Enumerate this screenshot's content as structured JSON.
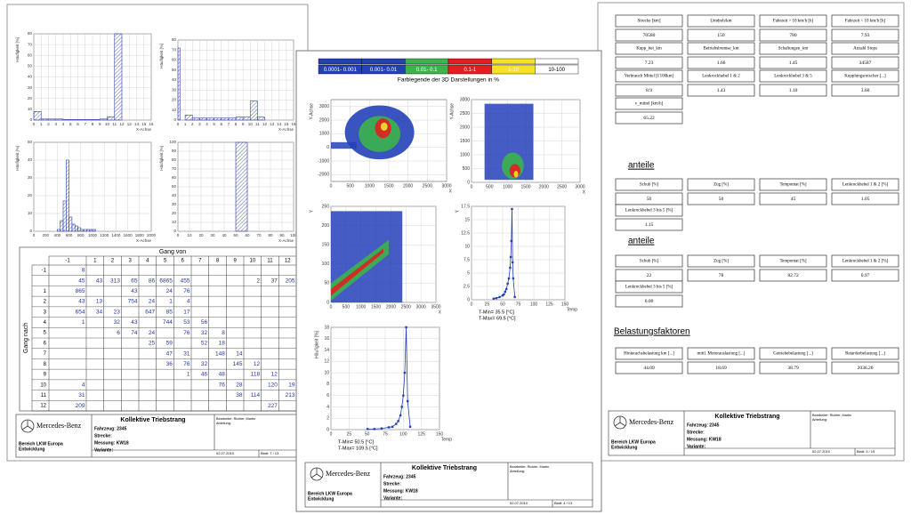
{
  "left_page": {
    "charts": [
      {
        "ylabel": "Häufigkeit [%]",
        "xlabel": "X-Achse",
        "xlim": [
          0,
          16
        ],
        "ylim": [
          0,
          80
        ],
        "xticks": [
          0,
          1,
          2,
          3,
          4,
          5,
          6,
          7,
          8,
          9,
          10,
          11,
          12,
          13,
          14,
          15,
          16
        ],
        "yticks": [
          0,
          10,
          20,
          30,
          40,
          50,
          60,
          70,
          80
        ],
        "bins": [
          0,
          1,
          2,
          3,
          4,
          5,
          6,
          7,
          8,
          9,
          10,
          11,
          12,
          13,
          14,
          15,
          16
        ],
        "values": [
          8,
          1,
          1,
          1,
          0.5,
          0.5,
          0.5,
          0.5,
          0.5,
          1,
          3,
          80,
          0,
          0,
          0,
          0
        ],
        "color": "#3344aa"
      },
      {
        "ylabel": "Häufigkeit [%]",
        "xlabel": "X-Achse",
        "xlim": [
          0,
          16
        ],
        "ylim": [
          0,
          80
        ],
        "xticks": [
          0,
          1,
          2,
          3,
          4,
          5,
          6,
          7,
          8,
          9,
          10,
          11,
          12,
          13,
          14,
          15,
          16
        ],
        "yticks": [
          0,
          10,
          20,
          30,
          40,
          50,
          60,
          70,
          80
        ],
        "bins": [
          0,
          0.3,
          1,
          2,
          3,
          4,
          5,
          6,
          7,
          8,
          9,
          10,
          11,
          12,
          13
        ],
        "values": [
          72,
          0,
          5,
          2,
          2,
          2,
          2,
          2,
          2,
          3,
          3,
          19,
          3,
          0
        ],
        "color": "#3344aa"
      },
      {
        "ylabel": "Häufigkeit [%]",
        "xlabel": "X-Achse",
        "xlim": [
          0,
          2000
        ],
        "ylim": [
          0,
          50
        ],
        "xticks": [
          0,
          200,
          400,
          600,
          800,
          1000,
          1200,
          1400,
          1600,
          1800,
          2000
        ],
        "yticks": [
          0,
          10,
          20,
          30,
          40,
          50
        ],
        "bins": [
          0,
          50,
          100,
          150,
          200,
          250,
          300,
          350,
          400,
          450,
          500,
          550,
          600,
          650,
          700,
          750,
          800,
          850,
          900,
          950,
          1000,
          1050
        ],
        "values": [
          0,
          0,
          0,
          0,
          0,
          0,
          0,
          0,
          1,
          6,
          17,
          40,
          8,
          4,
          3,
          2,
          1,
          1,
          1,
          1,
          1
        ],
        "color": "#3344aa"
      },
      {
        "ylabel": "Häufigkeit [%]",
        "xlabel": "X-Achse",
        "xlim": [
          0,
          100
        ],
        "ylim": [
          0,
          100
        ],
        "xticks": [
          0,
          10,
          20,
          30,
          40,
          50,
          60,
          70,
          80,
          90,
          100
        ],
        "yticks": [
          0,
          10,
          20,
          30,
          40,
          50,
          60,
          70,
          80,
          90,
          100
        ],
        "bins": [
          0,
          10,
          20,
          30,
          40,
          50,
          60,
          70,
          80,
          90,
          100
        ],
        "values": [
          0,
          0,
          0,
          0,
          0,
          100,
          0,
          0,
          0,
          0
        ],
        "color": "#3344aa"
      }
    ],
    "table": {
      "title": "Gang von",
      "row_title": "Gang nach",
      "columns": [
        -1,
        1,
        2,
        3,
        4,
        5,
        6,
        7,
        8,
        9,
        10,
        11,
        12
      ],
      "rows": [
        {
          "label": -1,
          "cells": [
            8,
            null,
            null,
            null,
            null,
            null,
            null,
            null,
            null,
            null,
            null,
            null,
            null
          ]
        },
        {
          "label": null,
          "cells": [
            45,
            43,
            313,
            65,
            86,
            6865,
            455,
            null,
            null,
            null,
            2,
            37,
            205
          ]
        },
        {
          "label": 1,
          "cells": [
            865,
            null,
            null,
            43,
            null,
            24,
            76,
            null,
            null,
            null,
            null,
            null,
            null
          ]
        },
        {
          "label": 2,
          "cells": [
            43,
            13,
            null,
            754,
            24,
            1,
            4,
            null,
            null,
            null,
            null,
            null,
            null
          ]
        },
        {
          "label": 3,
          "cells": [
            654,
            34,
            23,
            null,
            647,
            85,
            17,
            null,
            null,
            null,
            null,
            null,
            null
          ]
        },
        {
          "label": 4,
          "cells": [
            1,
            null,
            32,
            43,
            null,
            744,
            53,
            56,
            null,
            null,
            null,
            null,
            null
          ]
        },
        {
          "label": 5,
          "cells": [
            null,
            null,
            6,
            74,
            24,
            null,
            76,
            32,
            8,
            null,
            null,
            null,
            null
          ]
        },
        {
          "label": 6,
          "cells": [
            null,
            null,
            null,
            null,
            25,
            59,
            null,
            52,
            18,
            null,
            null,
            null,
            null
          ]
        },
        {
          "label": 7,
          "cells": [
            null,
            null,
            null,
            null,
            null,
            47,
            31,
            null,
            148,
            14,
            null,
            null,
            null
          ]
        },
        {
          "label": 8,
          "cells": [
            null,
            null,
            null,
            null,
            null,
            36,
            76,
            32,
            null,
            145,
            12,
            null,
            null
          ]
        },
        {
          "label": 9,
          "cells": [
            null,
            null,
            null,
            null,
            null,
            null,
            1,
            46,
            48,
            null,
            118,
            12,
            null
          ]
        },
        {
          "label": 10,
          "cells": [
            4,
            null,
            null,
            null,
            null,
            null,
            null,
            null,
            76,
            28,
            null,
            120,
            19
          ]
        },
        {
          "label": 11,
          "cells": [
            31,
            null,
            null,
            null,
            null,
            null,
            null,
            null,
            null,
            38,
            114,
            null,
            213
          ]
        },
        {
          "label": 12,
          "cells": [
            209,
            null,
            null,
            null,
            null,
            null,
            null,
            null,
            null,
            null,
            null,
            227,
            null
          ]
        }
      ]
    },
    "footer": {
      "brand": "Mercedes-Benz",
      "title": "Kollektive Triebstrang",
      "vehicle": "Fahrzeug: 2345",
      "route": "Strecke:",
      "measurement": "Messung: KW18",
      "variant": "Variante:",
      "dept1": "Bereich LKW Europa",
      "dept2": "Entwicklung",
      "editor": "Bearbeiter: Richter, Martin",
      "section": "Abteilung:",
      "date": "02.07.2010",
      "sheet": "Blatt: 7 / 13"
    }
  },
  "right_page": {
    "kpis": [
      {
        "label": "Strecke [km]",
        "value": "70580"
      },
      {
        "label": "Umdreh/km",
        "value": "150"
      },
      {
        "label": "Fahrzeit > 10 km/h [h]",
        "value": "780"
      },
      {
        "label": "Fahrzeit < 10 km/h [h]",
        "value": "7.93"
      },
      {
        "label": "Kupp_bet_km",
        "value": "7.23"
      },
      {
        "label": "Betriebsbremse_km",
        "value": "1.66"
      },
      {
        "label": "Schaltungen_km",
        "value": "1.45"
      },
      {
        "label": "Anzahl Stops",
        "value": "34587"
      },
      {
        "label": "Verbrauch Mittel [l/100km]",
        "value": "8.9"
      },
      {
        "label": "Lenkrockhebel 1 & 2",
        "value": "1.43"
      },
      {
        "label": "Lenkrockhebel 3 & 5",
        "value": "1.10"
      },
      {
        "label": "Kupplungsrutscher [...]",
        "value": "3.60"
      },
      {
        "label": "v_mittel [km/h]",
        "value": "65.22"
      }
    ],
    "sections": [
      {
        "title": "anteile",
        "items": [
          {
            "label": "Schub [%]",
            "value": "50"
          },
          {
            "label": "Zug [%]",
            "value": "50"
          },
          {
            "label": "Tempomat [%]",
            "value": "45"
          },
          {
            "label": "Lenkrockhebel 1 & 2 [%]",
            "value": "1.05"
          },
          {
            "label": "Lenkrockhebel 3 bis 5 [%]",
            "value": "1.15"
          }
        ]
      },
      {
        "title": "anteile",
        "items": [
          {
            "label": "Schub [%]",
            "value": "22"
          },
          {
            "label": "Zug [%]",
            "value": "78"
          },
          {
            "label": "Tempomat [%]",
            "value": "82.72"
          },
          {
            "label": "Lenkrockhebel 1 & 2 [%]",
            "value": "0.97"
          },
          {
            "label": "Lenkrockhebel 3 bis 5 [%]",
            "value": "0.00"
          }
        ]
      },
      {
        "title": "Belastungsfaktoren",
        "items": [
          {
            "label": "Hinterachsbelastung km [...]",
            "value": "44.09"
          },
          {
            "label": "mittl. Motorauslastung [...]",
            "value": "18.69"
          },
          {
            "label": "Getriebebelastung [...]",
            "value": "38.79"
          },
          {
            "label": "Retarderbelastung [...]",
            "value": "2036.26"
          }
        ]
      }
    ],
    "footer": {
      "brand": "Mercedes-Benz",
      "title": "Kollektive Triebstrang",
      "vehicle": "Fahrzeug: 2345",
      "route": "Strecke:",
      "measurement": "Messung: KW18",
      "variant": "Variante:",
      "dept1": "Bereich LKW Europa",
      "dept2": "Entwicklung",
      "editor": "Bearbeiter: Richter, Martin",
      "section": "Abteilung:",
      "date": "02.07.2010",
      "sheet": "Blatt: 3 / 15"
    }
  },
  "middle_page": {
    "legend": {
      "title": "Farblegende der 3D Darstellungen in %",
      "ranges": [
        {
          "label": "0.0001- 0.001",
          "color": "#2340b8",
          "text_color": "#ffffff"
        },
        {
          "label": "0.001- 0.01",
          "color": "#2340b8",
          "text_color": "#ffffff"
        },
        {
          "label": "0.01- 0.1",
          "color": "#3cb44b",
          "text_color": "#ffffff"
        },
        {
          "label": "0.1-1",
          "color": "#e02020",
          "text_color": "#ffffff"
        },
        {
          "label": "1-10",
          "color": "#f5e12a",
          "text_color": "#ffffff"
        },
        {
          "label": "10-100",
          "color": "#ffffff",
          "text_color": "#000000"
        }
      ]
    },
    "heatmaps": [
      {
        "ylabel": "Y-Achse",
        "xlabel": "X",
        "xlim": [
          0,
          3000
        ],
        "ylim": [
          -2500,
          3500
        ],
        "xticks": [
          0,
          500,
          1000,
          1500,
          2000,
          2500,
          3000
        ],
        "yticks": [
          -2000,
          -1000,
          0,
          1000,
          2000,
          3000
        ]
      },
      {
        "ylabel": "Y-Achse",
        "xlabel": "X",
        "xlim": [
          0,
          3000
        ],
        "ylim": [
          0,
          3000
        ],
        "xticks": [
          0,
          500,
          1000,
          1500,
          2000,
          2500,
          3000
        ],
        "yticks": [
          0,
          500,
          1000,
          1500,
          2000,
          2500,
          3000
        ]
      },
      {
        "ylabel": "Y",
        "xlabel": "X",
        "xlim": [
          0,
          3500
        ],
        "ylim": [
          0,
          250
        ],
        "xticks": [
          0,
          500,
          1000,
          1500,
          2000,
          2500,
          3000,
          3500
        ],
        "yticks": [
          0,
          50,
          100,
          150,
          200,
          250
        ]
      }
    ],
    "line_plots": [
      {
        "ylabel": "Y",
        "xlabel": "Temp",
        "xlim": [
          0,
          150
        ],
        "ylim": [
          0,
          17.5
        ],
        "xticks": [
          0,
          25,
          50,
          75,
          100,
          125,
          150
        ],
        "yticks": [
          0,
          2.5,
          5,
          7.5,
          10,
          12.5,
          15,
          17.5
        ],
        "x": [
          35.5,
          40,
          45,
          50,
          52,
          54,
          56,
          58,
          60,
          62,
          63,
          64,
          65,
          66,
          67,
          69.5
        ],
        "values": [
          0.2,
          0.3,
          0.5,
          0.8,
          1,
          1.5,
          2,
          3,
          4,
          6,
          8,
          11,
          17,
          7,
          4,
          0.5
        ],
        "color": "#2340b8",
        "notes": [
          "T-Min= 35.5 [°C]",
          "T-Max= 69.5 [°C]"
        ]
      },
      {
        "ylabel": "Häufigkeit [%]",
        "xlabel": "Temp",
        "xlim": [
          0,
          150
        ],
        "ylim": [
          0,
          18
        ],
        "xticks": [
          0,
          25,
          50,
          75,
          100,
          125,
          150
        ],
        "yticks": [
          0,
          2,
          4,
          6,
          8,
          10,
          12,
          14,
          16,
          18
        ],
        "x": [
          50.5,
          60,
          70,
          80,
          85,
          90,
          93,
          96,
          98,
          100,
          102,
          104,
          106,
          109.5
        ],
        "values": [
          0.1,
          0.1,
          0.2,
          0.4,
          0.5,
          1,
          1.5,
          2.5,
          4,
          6,
          10,
          18,
          5,
          0.5
        ],
        "color": "#2340b8",
        "notes": [
          "T-Min= 50.5 [°C]",
          "T-Max= 109.5 [°C]"
        ]
      }
    ],
    "footer": {
      "brand": "Mercedes-Benz",
      "title": "Kollektive Triebstrang",
      "vehicle": "Fahrzeug: 2345",
      "route": "Strecke:",
      "measurement": "Messung: KW18",
      "variant": "Variante:",
      "dept1": "Bereich LKW Europa",
      "dept2": "Entwicklung",
      "editor": "Bearbeiter: Richter, Martin",
      "section": "Abteilung:",
      "date": "02.07.2010",
      "sheet": "Blatt: 4 / 13"
    }
  }
}
